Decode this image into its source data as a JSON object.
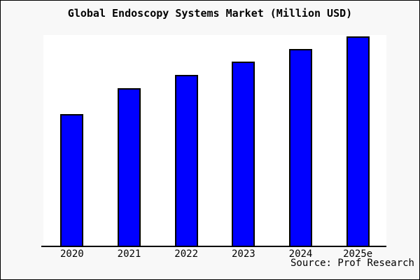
{
  "page": {
    "background_color": "#f8f8f8",
    "plot_background_color": "#ffffff",
    "frame_border_color": "#000000"
  },
  "chart_data": {
    "type": "bar",
    "title": "Global Endoscopy Systems Market (Million USD)",
    "categories": [
      "2020",
      "2021",
      "2022",
      "2023",
      "2024",
      "2025e"
    ],
    "values": [
      62.9,
      75.3,
      81.6,
      88.0,
      94.0,
      100.0
    ],
    "value_unit": "relative index estimated from bar heights (no y-axis labels or gridlines shown; 2025e = 100)",
    "xlabel": "",
    "ylabel": "",
    "legend": "none",
    "grid": false,
    "bar_color": "#0000ff",
    "bar_border_color": "#000000",
    "axis_color": "#000000",
    "source": "Source: Prof Research"
  }
}
